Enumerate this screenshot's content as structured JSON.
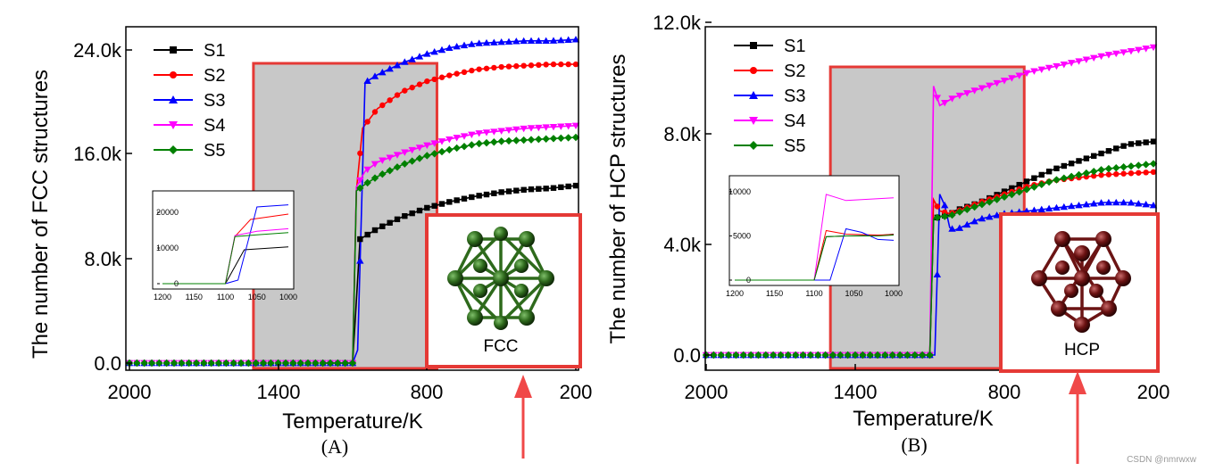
{
  "chart_data": [
    {
      "type": "line",
      "panel_label": "(A)",
      "ylabel": "The number of FCC structures",
      "xlabel": "Temperature/K",
      "xlim": [
        2000,
        200
      ],
      "ylim": [
        0,
        27000
      ],
      "x_ticks": [
        "2000",
        "1400",
        "800",
        "200"
      ],
      "y_ticks": [
        "0.0",
        "8.0k",
        "16.0k",
        "24.0k"
      ],
      "highlight_range_K": [
        1500,
        760
      ],
      "inset": {
        "x_ticks": [
          "1200",
          "1150",
          "1100",
          "1050",
          "1000"
        ],
        "y_ticks": [
          "0",
          "10000",
          "20000"
        ],
        "xlim": [
          1200,
          1000
        ],
        "ylim": [
          0,
          24000
        ]
      },
      "crystal_label": "FCC",
      "series": [
        {
          "name": "S1",
          "color": "#000000",
          "marker": "square",
          "x": [
            1220,
            1180,
            1120,
            1100,
            1070,
            1000,
            900,
            800,
            700,
            600,
            500,
            400,
            300,
            200
          ],
          "values": [
            0,
            0,
            0,
            0,
            9500,
            10300,
            11200,
            11900,
            12400,
            12800,
            13100,
            13300,
            13400,
            13600
          ]
        },
        {
          "name": "S2",
          "color": "#ff0000",
          "marker": "circle",
          "x": [
            1220,
            1180,
            1120,
            1100,
            1085,
            1060,
            1000,
            900,
            800,
            700,
            600,
            500,
            400,
            300,
            200
          ],
          "values": [
            0,
            0,
            0,
            0,
            13200,
            18000,
            19500,
            20800,
            21600,
            22100,
            22500,
            22700,
            22800,
            22900,
            22900
          ]
        },
        {
          "name": "S3",
          "color": "#0000ff",
          "marker": "triangle-up",
          "x": [
            1220,
            1180,
            1120,
            1100,
            1080,
            1050,
            1000,
            900,
            800,
            700,
            600,
            500,
            400,
            300,
            200
          ],
          "values": [
            0,
            0,
            0,
            0,
            1000,
            21500,
            22100,
            23000,
            23700,
            24200,
            24500,
            24600,
            24700,
            24700,
            24800
          ]
        },
        {
          "name": "S4",
          "color": "#ff00ff",
          "marker": "triangle-down",
          "x": [
            1220,
            1180,
            1120,
            1100,
            1085,
            1050,
            1000,
            900,
            800,
            700,
            600,
            500,
            400,
            300,
            200
          ],
          "values": [
            0,
            0,
            0,
            0,
            13500,
            14700,
            15400,
            16100,
            16700,
            17200,
            17600,
            17800,
            18000,
            18100,
            18200
          ]
        },
        {
          "name": "S5",
          "color": "#008000",
          "marker": "diamond",
          "x": [
            1220,
            1180,
            1120,
            1100,
            1085,
            1050,
            1000,
            900,
            800,
            700,
            600,
            500,
            400,
            300,
            200
          ],
          "values": [
            0,
            0,
            0,
            0,
            13200,
            13700,
            14300,
            15200,
            15900,
            16400,
            16800,
            17000,
            17100,
            17200,
            17300
          ]
        }
      ]
    },
    {
      "type": "line",
      "panel_label": "(B)",
      "ylabel": "The number of HCP structures",
      "xlabel": "Temperature/K",
      "xlim": [
        2000,
        200
      ],
      "ylim": [
        0,
        12000
      ],
      "x_ticks": [
        "2000",
        "1400",
        "800",
        "200"
      ],
      "y_ticks": [
        "0.0",
        "4.0k",
        "8.0k",
        "12.0k"
      ],
      "highlight_range_K": [
        1500,
        720
      ],
      "inset": {
        "x_ticks": [
          "1200",
          "1150",
          "1100",
          "1050",
          "1000"
        ],
        "y_ticks": [
          "0",
          "5000",
          "10000"
        ],
        "xlim": [
          1200,
          1000
        ],
        "ylim": [
          0,
          11000
        ]
      },
      "crystal_label": "HCP",
      "series": [
        {
          "name": "S1",
          "color": "#000000",
          "marker": "square",
          "x": [
            1220,
            1180,
            1120,
            1100,
            1085,
            1060,
            1020,
            1000,
            900,
            800,
            700,
            600,
            500,
            400,
            300,
            200
          ],
          "values": [
            0,
            0,
            0,
            0,
            4900,
            5000,
            5050,
            5200,
            5500,
            5900,
            6300,
            6700,
            7000,
            7300,
            7600,
            7700
          ]
        },
        {
          "name": "S2",
          "color": "#ff0000",
          "marker": "circle",
          "x": [
            1220,
            1180,
            1120,
            1100,
            1085,
            1060,
            1020,
            1000,
            900,
            800,
            700,
            600,
            500,
            400,
            300,
            200
          ],
          "values": [
            0,
            0,
            0,
            0,
            5600,
            5200,
            5100,
            5150,
            5500,
            5800,
            6100,
            6300,
            6400,
            6500,
            6550,
            6600
          ]
        },
        {
          "name": "S3",
          "color": "#0000ff",
          "marker": "triangle-up",
          "x": [
            1220,
            1180,
            1120,
            1100,
            1080,
            1060,
            1040,
            1020,
            1000,
            950,
            900,
            800,
            700,
            600,
            500,
            400,
            300,
            200
          ],
          "values": [
            0,
            0,
            0,
            0,
            0,
            5800,
            5400,
            4600,
            4500,
            4700,
            4900,
            5100,
            5200,
            5300,
            5400,
            5500,
            5500,
            5400
          ]
        },
        {
          "name": "S4",
          "color": "#ff00ff",
          "marker": "triangle-down",
          "x": [
            1220,
            1180,
            1120,
            1100,
            1085,
            1060,
            1020,
            1000,
            900,
            800,
            700,
            600,
            500,
            400,
            300,
            200
          ],
          "values": [
            0,
            0,
            0,
            0,
            9700,
            9000,
            9200,
            9300,
            9600,
            9900,
            10200,
            10400,
            10600,
            10800,
            10950,
            11100
          ]
        },
        {
          "name": "S5",
          "color": "#008000",
          "marker": "diamond",
          "x": [
            1220,
            1180,
            1120,
            1100,
            1085,
            1060,
            1020,
            1000,
            900,
            800,
            700,
            600,
            500,
            400,
            300,
            200
          ],
          "values": [
            0,
            0,
            0,
            0,
            4900,
            5000,
            5000,
            5100,
            5400,
            5700,
            6000,
            6300,
            6500,
            6700,
            6800,
            6900
          ]
        }
      ]
    }
  ],
  "watermark": "CSDN @nmrwxw"
}
